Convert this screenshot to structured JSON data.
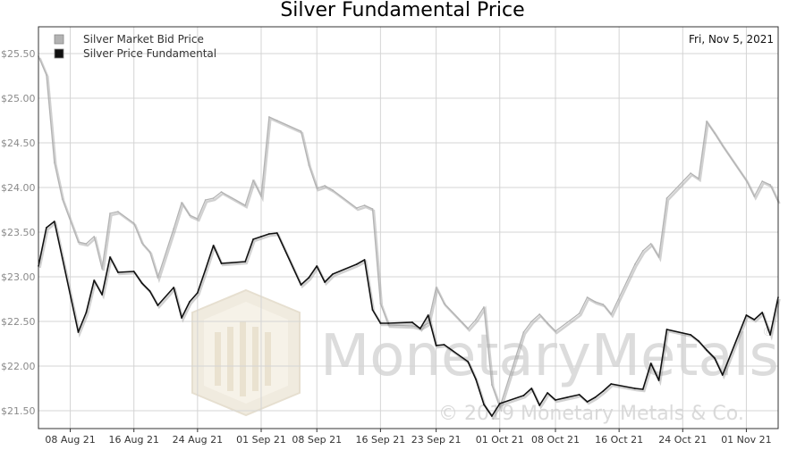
{
  "chart_data": {
    "type": "line",
    "title": "Silver Fundamental Price",
    "date_label": "Fri, Nov 5, 2021",
    "xlabel": "",
    "ylabel": "",
    "ylim": [
      21.3,
      25.8
    ],
    "yticks": [
      "$21.50",
      "$22.00",
      "$22.50",
      "$23.00",
      "$23.50",
      "$24.00",
      "$24.50",
      "$25.00",
      "$25.50"
    ],
    "ytick_values": [
      21.5,
      22.0,
      22.5,
      23.0,
      23.5,
      24.0,
      24.5,
      25.0,
      25.5
    ],
    "x_range": [
      "2021-08-04",
      "2021-11-05"
    ],
    "xticks": [
      "08 Aug 21",
      "16 Aug 21",
      "24 Aug 21",
      "01 Sep 21",
      "08 Sep 21",
      "16 Sep 21",
      "23 Sep 21",
      "01 Oct 21",
      "08 Oct 21",
      "16 Oct 21",
      "24 Oct 21",
      "01 Nov 21"
    ],
    "xtick_dates": [
      "2021-08-08",
      "2021-08-16",
      "2021-08-24",
      "2021-09-01",
      "2021-09-08",
      "2021-09-16",
      "2021-09-23",
      "2021-10-01",
      "2021-10-08",
      "2021-10-16",
      "2021-10-24",
      "2021-11-01"
    ],
    "grid": true,
    "legend_position": "top-left",
    "series": [
      {
        "name": "Silver Market Bid Price",
        "color": "#b3b3b3",
        "x": [
          "2021-08-04",
          "2021-08-05",
          "2021-08-06",
          "2021-08-07",
          "2021-08-09",
          "2021-08-10",
          "2021-08-11",
          "2021-08-12",
          "2021-08-13",
          "2021-08-14",
          "2021-08-16",
          "2021-08-17",
          "2021-08-18",
          "2021-08-19",
          "2021-08-21",
          "2021-08-22",
          "2021-08-23",
          "2021-08-24",
          "2021-08-25",
          "2021-08-26",
          "2021-08-27",
          "2021-08-30",
          "2021-08-31",
          "2021-09-01",
          "2021-09-02",
          "2021-09-03",
          "2021-09-06",
          "2021-09-07",
          "2021-09-08",
          "2021-09-09",
          "2021-09-10",
          "2021-09-13",
          "2021-09-14",
          "2021-09-15",
          "2021-09-16",
          "2021-09-17",
          "2021-09-20",
          "2021-09-21",
          "2021-09-22",
          "2021-09-23",
          "2021-09-24",
          "2021-09-27",
          "2021-09-28",
          "2021-09-29",
          "2021-09-30",
          "2021-10-01",
          "2021-10-04",
          "2021-10-05",
          "2021-10-06",
          "2021-10-07",
          "2021-10-08",
          "2021-10-11",
          "2021-10-12",
          "2021-10-13",
          "2021-10-14",
          "2021-10-15",
          "2021-10-18",
          "2021-10-19",
          "2021-10-20",
          "2021-10-21",
          "2021-10-22",
          "2021-10-25",
          "2021-10-26",
          "2021-10-27",
          "2021-10-28",
          "2021-10-29",
          "2021-11-01",
          "2021-11-02",
          "2021-11-03",
          "2021-11-04",
          "2021-11-05"
        ],
        "values": [
          25.47,
          25.26,
          24.28,
          23.87,
          23.39,
          23.37,
          23.45,
          23.09,
          23.71,
          23.73,
          23.6,
          23.38,
          23.28,
          22.99,
          23.54,
          23.83,
          23.69,
          23.65,
          23.86,
          23.88,
          23.95,
          23.8,
          24.08,
          23.9,
          24.79,
          24.75,
          24.63,
          24.25,
          23.99,
          24.02,
          23.97,
          23.77,
          23.8,
          23.76,
          22.7,
          22.46,
          22.45,
          22.43,
          22.48,
          22.88,
          22.7,
          22.42,
          22.52,
          22.66,
          21.79,
          21.54,
          22.38,
          22.5,
          22.58,
          22.48,
          22.39,
          22.59,
          22.77,
          22.72,
          22.69,
          22.58,
          23.14,
          23.29,
          23.37,
          23.22,
          23.88,
          24.16,
          24.1,
          24.74,
          24.61,
          24.47,
          24.08,
          23.9,
          24.07,
          24.03,
          23.84
        ]
      },
      {
        "name": "Silver Price Fundamental",
        "color": "#111111",
        "x": [
          "2021-08-04",
          "2021-08-05",
          "2021-08-06",
          "2021-08-07",
          "2021-08-09",
          "2021-08-10",
          "2021-08-11",
          "2021-08-12",
          "2021-08-13",
          "2021-08-14",
          "2021-08-16",
          "2021-08-17",
          "2021-08-18",
          "2021-08-19",
          "2021-08-21",
          "2021-08-22",
          "2021-08-23",
          "2021-08-24",
          "2021-08-25",
          "2021-08-26",
          "2021-08-27",
          "2021-08-30",
          "2021-08-31",
          "2021-09-01",
          "2021-09-02",
          "2021-09-03",
          "2021-09-06",
          "2021-09-07",
          "2021-09-08",
          "2021-09-09",
          "2021-09-10",
          "2021-09-13",
          "2021-09-14",
          "2021-09-15",
          "2021-09-16",
          "2021-09-17",
          "2021-09-20",
          "2021-09-21",
          "2021-09-22",
          "2021-09-23",
          "2021-09-24",
          "2021-09-27",
          "2021-09-28",
          "2021-09-29",
          "2021-09-30",
          "2021-10-01",
          "2021-10-04",
          "2021-10-05",
          "2021-10-06",
          "2021-10-07",
          "2021-10-08",
          "2021-10-11",
          "2021-10-12",
          "2021-10-13",
          "2021-10-14",
          "2021-10-15",
          "2021-10-18",
          "2021-10-19",
          "2021-10-20",
          "2021-10-21",
          "2021-10-22",
          "2021-10-25",
          "2021-10-26",
          "2021-10-27",
          "2021-10-28",
          "2021-10-29",
          "2021-11-01",
          "2021-11-02",
          "2021-11-03",
          "2021-11-04",
          "2021-11-05"
        ],
        "values": [
          23.12,
          23.55,
          23.62,
          23.21,
          22.38,
          22.6,
          22.96,
          22.8,
          23.22,
          23.05,
          23.06,
          22.93,
          22.84,
          22.68,
          22.88,
          22.54,
          22.72,
          22.82,
          23.08,
          23.35,
          23.15,
          23.17,
          23.42,
          23.45,
          23.48,
          23.49,
          22.91,
          22.99,
          23.12,
          22.94,
          23.03,
          23.14,
          23.19,
          22.63,
          22.48,
          22.48,
          22.49,
          22.42,
          22.57,
          22.23,
          22.24,
          22.05,
          21.85,
          21.57,
          21.44,
          21.58,
          21.67,
          21.75,
          21.56,
          21.7,
          21.62,
          21.68,
          21.6,
          21.65,
          21.72,
          21.8,
          21.75,
          21.74,
          22.03,
          21.84,
          22.41,
          22.35,
          22.28,
          22.18,
          22.09,
          21.9,
          22.57,
          22.52,
          22.6,
          22.35,
          22.77
        ]
      }
    ]
  },
  "watermark": {
    "brand": "MonetaryMetals",
    "registered": "®",
    "copyright": "© 2019 Monetary Metals & Co."
  }
}
